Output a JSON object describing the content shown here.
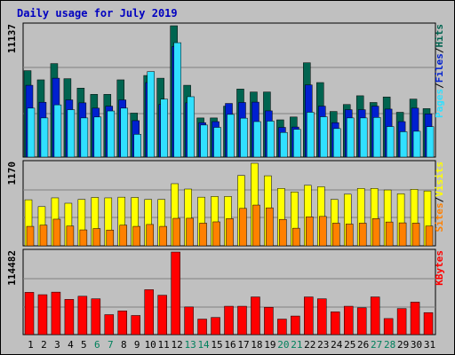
{
  "title": "Daily usage for July 2019",
  "colors": {
    "hits": "#006450",
    "files": "#0020d0",
    "pages": "#30e0ff",
    "visits": "#ffff00",
    "sites": "#ff8000",
    "kbytes": "#ff0000"
  },
  "chart_data": [
    {
      "type": "bar",
      "title": "Daily usage for July 2019",
      "categories": [
        "1",
        "2",
        "3",
        "4",
        "5",
        "6",
        "7",
        "8",
        "9",
        "10",
        "11",
        "12",
        "13",
        "14",
        "15",
        "16",
        "17",
        "18",
        "19",
        "20",
        "21",
        "22",
        "23",
        "24",
        "25",
        "26",
        "27",
        "28",
        "29",
        "30",
        "31"
      ],
      "weekend_days": [
        "6",
        "7",
        "13",
        "14",
        "20",
        "21",
        "27",
        "28"
      ],
      "ymax_label": "11137",
      "ylim": [
        0,
        11137
      ],
      "right_labels": [
        "Pages",
        "Files",
        "Hits"
      ],
      "series": [
        {
          "name": "Hits",
          "values": [
            7330,
            6550,
            7930,
            6650,
            5850,
            5320,
            5320,
            6550,
            3730,
            6920,
            6690,
            11137,
            6090,
            3320,
            3320,
            4320,
            5770,
            5520,
            5520,
            3160,
            3400,
            8000,
            6320,
            3870,
            4460,
            5200,
            4630,
            5100,
            3800,
            4920,
            4110
          ]
        },
        {
          "name": "Files",
          "values": [
            6090,
            4650,
            6690,
            4850,
            4600,
            4150,
            4320,
            4850,
            3090,
            6320,
            4460,
            9380,
            4600,
            2920,
            3010,
            4550,
            4630,
            4660,
            3920,
            2520,
            2550,
            6120,
            4320,
            2920,
            4020,
            4020,
            4320,
            4070,
            3010,
            4150,
            3660
          ]
        },
        {
          "name": "Pages",
          "values": [
            4150,
            3320,
            4430,
            4020,
            3320,
            3400,
            3910,
            4150,
            1930,
            7250,
            4910,
            9700,
            5120,
            2720,
            2520,
            3620,
            3300,
            3010,
            3050,
            2090,
            2350,
            3800,
            3420,
            2420,
            3320,
            3320,
            3360,
            2590,
            2150,
            2190,
            2580
          ]
        }
      ]
    },
    {
      "type": "bar",
      "categories": [
        "1",
        "2",
        "3",
        "4",
        "5",
        "6",
        "7",
        "8",
        "9",
        "10",
        "11",
        "12",
        "13",
        "14",
        "15",
        "16",
        "17",
        "18",
        "19",
        "20",
        "21",
        "22",
        "23",
        "24",
        "25",
        "26",
        "27",
        "28",
        "29",
        "30",
        "31"
      ],
      "ymax_label": "1170",
      "ylim": [
        0,
        1170
      ],
      "right_labels": [
        "Sites",
        "Visits"
      ],
      "series": [
        {
          "name": "Visits",
          "values": [
            653,
            556,
            680,
            604,
            658,
            686,
            680,
            690,
            686,
            658,
            658,
            881,
            805,
            690,
            700,
            700,
            997,
            1170,
            993,
            814,
            764,
            858,
            838,
            658,
            732,
            814,
            814,
            792,
            738,
            801,
            778
          ]
        },
        {
          "name": "Sites",
          "values": [
            276,
            294,
            378,
            281,
            226,
            245,
            224,
            294,
            276,
            303,
            276,
            390,
            391,
            322,
            340,
            386,
            531,
            578,
            539,
            375,
            250,
            411,
            417,
            322,
            309,
            322,
            386,
            338,
            326,
            322,
            281
          ]
        }
      ]
    },
    {
      "type": "bar",
      "categories": [
        "1",
        "2",
        "3",
        "4",
        "5",
        "6",
        "7",
        "8",
        "9",
        "10",
        "11",
        "12",
        "13",
        "14",
        "15",
        "16",
        "17",
        "18",
        "19",
        "20",
        "21",
        "22",
        "23",
        "24",
        "25",
        "26",
        "27",
        "28",
        "29",
        "30",
        "31"
      ],
      "ymax_label": "114482",
      "ylim": [
        0,
        114482
      ],
      "right_labels": [
        "KBytes"
      ],
      "series": [
        {
          "name": "KBytes",
          "values": [
            58620,
            55360,
            58930,
            48840,
            53210,
            49680,
            27700,
            32870,
            26510,
            62300,
            54620,
            114482,
            38340,
            21510,
            23810,
            39330,
            39330,
            52250,
            37910,
            21510,
            25770,
            52250,
            49680,
            31520,
            39330,
            37160,
            52250,
            22260,
            36130,
            45040,
            30510
          ]
        }
      ]
    }
  ]
}
